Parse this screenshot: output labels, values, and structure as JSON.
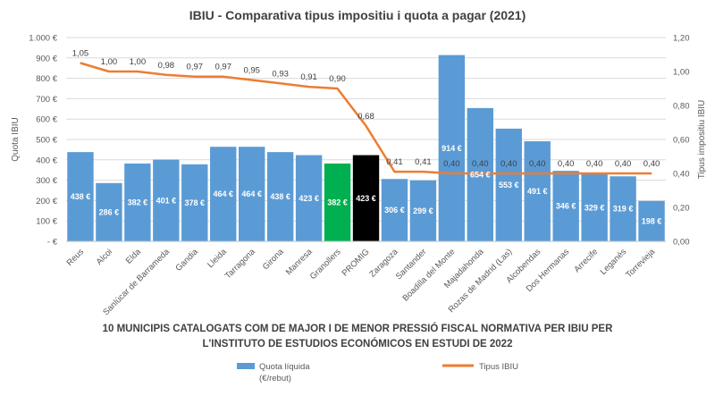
{
  "chart_data": {
    "type": "bar",
    "title": "IBIU - Comparativa tipus impositiu i quota a pagar (2021)",
    "subtitle_lines": [
      "10 MUNICIPIS CATALOGATS COM DE MAJOR I DE MENOR PRESSIÓ FISCAL NORMATIVA PER IBIU PER",
      "L'INSTITUTO DE ESTUDIOS ECONÓMICOS EN ESTUDI DE 2022"
    ],
    "ylabel": "Quota IBIU",
    "y2label": "Tipus impositiu IBIU",
    "ylim": [
      0,
      1000
    ],
    "y2lim": [
      0,
      1.2
    ],
    "yticks": [
      "-  €",
      "100 €",
      "200 €",
      "300 €",
      "400 €",
      "500 €",
      "600 €",
      "700 €",
      "800 €",
      "900 €",
      "1.000 €"
    ],
    "y2ticks": [
      "0,00",
      "0,20",
      "0,40",
      "0,60",
      "0,80",
      "1,00",
      "1,20"
    ],
    "categories": [
      "Reus",
      "Alcoi",
      "Elda",
      "Sanlúcar de Barrameda",
      "Gandia",
      "Lleida",
      "Tarragona",
      "Girona",
      "Manresa",
      "Granollers",
      "PROMIG",
      "Zaragoza",
      "Santander",
      "Boadilla del Monte",
      "Majadahonda",
      "Rozas de Madrid (Las)",
      "Alcobendas",
      "Dos Hermanas",
      "Arrecife",
      "Leganés",
      "Torrevieja"
    ],
    "series": [
      {
        "name": "Quota líquida (€/rebut)",
        "kind": "bar",
        "values": [
          438,
          286,
          382,
          401,
          378,
          464,
          464,
          438,
          423,
          382,
          423,
          306,
          299,
          914,
          654,
          553,
          491,
          346,
          329,
          319,
          198
        ],
        "labels": [
          "438 €",
          "286 €",
          "382 €",
          "401 €",
          "378 €",
          "464 €",
          "464 €",
          "438 €",
          "423 €",
          "382 €",
          "423 €",
          "306 €",
          "299 €",
          "914 €",
          "654 €",
          "553 €",
          "491 €",
          "346 €",
          "329 €",
          "319 €",
          "198 €"
        ],
        "color": "#5b9bd5",
        "highlight": {
          "Granollers": "#00b050",
          "PROMIG": "#000000"
        }
      },
      {
        "name": "Tipus IBIU",
        "kind": "line",
        "axis": "right",
        "values": [
          1.05,
          1.0,
          1.0,
          0.98,
          0.97,
          0.97,
          0.95,
          0.93,
          0.91,
          0.9,
          0.68,
          0.41,
          0.41,
          0.4,
          0.4,
          0.4,
          0.4,
          0.4,
          0.4,
          0.4,
          0.4
        ],
        "labels": [
          "1,05",
          "1,00",
          "1,00",
          "0,98",
          "0,97",
          "0,97",
          "0,95",
          "0,93",
          "0,91",
          "0,90",
          "0,68",
          "0,41",
          "0,41",
          "0,40",
          "0,40",
          "0,40",
          "0,40",
          "0,40",
          "0,40",
          "0,40",
          "0,40"
        ],
        "color": "#ed7d31"
      }
    ],
    "legend": {
      "position": "bottom",
      "bar_label_lines": [
        "Quota líquida",
        "(€/rebut)"
      ],
      "line_label": "Tipus IBIU"
    },
    "grid": true
  }
}
